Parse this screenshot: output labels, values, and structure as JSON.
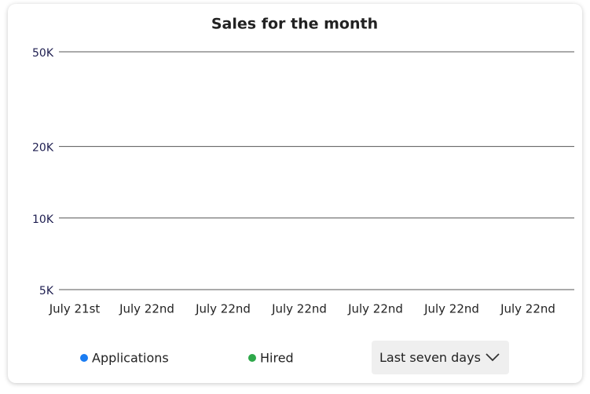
{
  "chart_data": {
    "type": "line",
    "title": "Sales for the month",
    "categories": [
      "July 21st",
      "July 22nd",
      "July 22nd",
      "July 22nd",
      "July 22nd",
      "July 22nd",
      "July 22nd"
    ],
    "series": [
      {
        "name": "Applications",
        "color": "#1a7cf2",
        "values": [
          null,
          null,
          null,
          null,
          null,
          null,
          null
        ]
      },
      {
        "name": "Hired",
        "color": "#2ea84a",
        "values": [
          null,
          null,
          null,
          null,
          null,
          null,
          null
        ]
      }
    ],
    "log_y": true,
    "ylim": [
      5000,
      50000
    ],
    "yticks": [
      {
        "value": 5000,
        "label": "5K"
      },
      {
        "value": 10000,
        "label": "10K"
      },
      {
        "value": 20000,
        "label": "20K"
      },
      {
        "value": 50000,
        "label": "50K"
      }
    ],
    "grid": true
  },
  "dropdown": {
    "label": "Last seven days"
  }
}
